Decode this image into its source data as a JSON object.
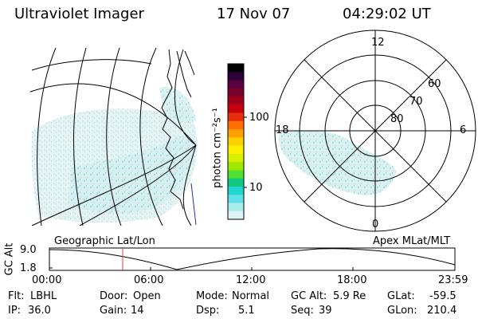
{
  "header": {
    "instrument": "Ultraviolet Imager",
    "date": "17 Nov 07",
    "time": "04:29:02 UT"
  },
  "colorbar": {
    "unit_label": "photon cm⁻²s⁻¹",
    "ticks": [
      "100",
      "10"
    ],
    "colors": [
      "#000000",
      "#2a0036",
      "#5a0040",
      "#7a002a",
      "#a00018",
      "#c80010",
      "#e6300a",
      "#ff7000",
      "#ffa000",
      "#ffd000",
      "#fff000",
      "#d8f000",
      "#a0e800",
      "#50e030",
      "#10c880",
      "#20d8d0",
      "#60e0e8",
      "#a8ecec",
      "#dcf4f4"
    ]
  },
  "left_map": {
    "label": "Geographic Lat/Lon"
  },
  "polar_plot": {
    "label": "Apex MLat/MLT",
    "mlt_labels": [
      "12",
      "18",
      "6",
      "0"
    ],
    "lat_labels": [
      "60",
      "70",
      "80"
    ]
  },
  "altitude_plot": {
    "ylabel": "GC Alt",
    "y_ticks": [
      "9.0",
      "1.8"
    ],
    "x_ticks": [
      "00:00",
      "06:00",
      "12:00",
      "18:00",
      "23:59"
    ],
    "current_time_marker": "04:29"
  },
  "info": {
    "filter": {
      "label": "Flt:",
      "value": "LBHL"
    },
    "ip": {
      "label": "IP:",
      "value": "36.0"
    },
    "door": {
      "label": "Door:",
      "value": "Open"
    },
    "gain": {
      "label": "Gain:",
      "value": "14"
    },
    "mode": {
      "label": "Mode:",
      "value": "Normal"
    },
    "dsp": {
      "label": "Dsp:",
      "value": "5.1"
    },
    "gc_alt": {
      "label": "GC Alt:",
      "value": "5.9 Re"
    },
    "seq": {
      "label": "Seq:",
      "value": "39"
    },
    "glat": {
      "label": "GLat:",
      "value": "-59.5"
    },
    "glon": {
      "label": "GLon:",
      "value": "210.4"
    }
  },
  "colors": {
    "aurora": "#9fe3e6",
    "aurora_bright": "#5cd6e0",
    "aurora_pale": "#d6ecec",
    "marker": "#e04040",
    "coast": "#000000",
    "coast_blue": "#2030a0"
  }
}
